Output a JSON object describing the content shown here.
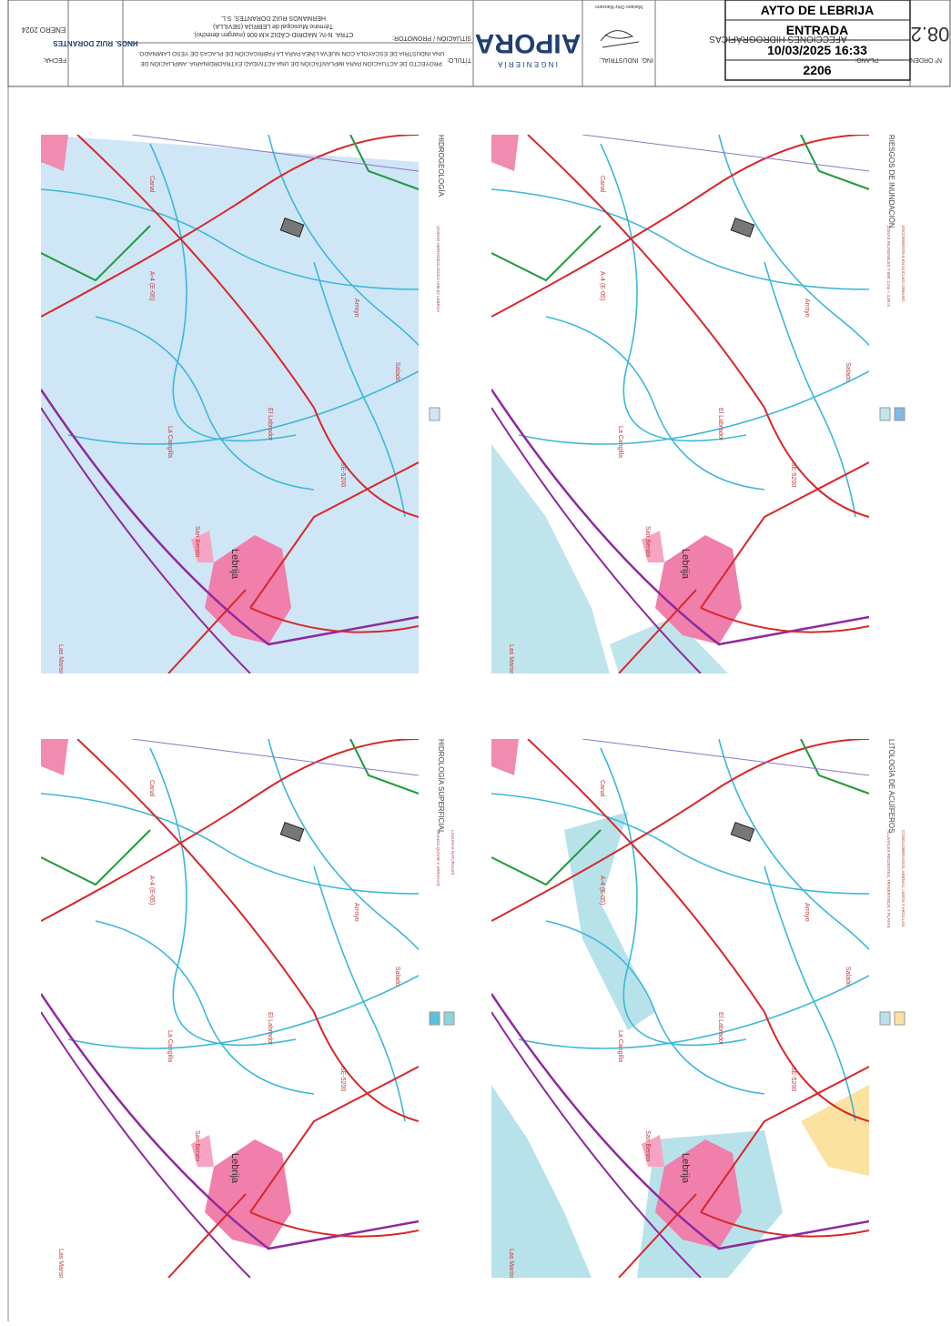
{
  "stamp": {
    "org": "AYTO DE LEBRIJA",
    "label": "ENTRADA",
    "datetime": "10/03/2025 16:33",
    "number": "2206"
  },
  "title_block": {
    "order_label": "Nº ORDEN:",
    "plan_number": "08.2",
    "plan_label": "PLANO:",
    "plan_title": "AFECCIONES HIDROGRÁFICAS",
    "engineer_label": "ING. INDUSTRIAL:",
    "engineer_name": "Mariano Ortiz Manzano",
    "company": "AIPORA",
    "company_sub": "I N G E N I E R Í A",
    "title_label": "TÍTULO:",
    "title_lines": [
      "PROYECTO DE ACTUACIÓN PARA IMPLANTACIÓN DE UNA ACTIVIDAD EXTRAORDINARIA. AMPLIACIÓN DE",
      "UNA INDUSTRIA DE ESCAYOLA CON NUEVA LÍNEA PARA LA FABRICACIÓN DE PLACAS DE YESO LAMINADO."
    ],
    "situation_label": "SITUACIÓN / PROMOTOR:",
    "situation_lines": [
      "CTRA. N-IV, MADRID-CÁDIZ KM 606 (margen derecho).",
      "Término Municipal de LEBRIJA (SEVILLA)",
      "HERMANOS RUIZ DORANTES, S.L."
    ],
    "client": "HNOS. RUIZ DORANTES",
    "date_label": "FECHA:",
    "date": "ENERO 2024"
  },
  "map_labels": [
    "Lebrija",
    "A-4 (E-05)",
    "Arroyo",
    "Canal",
    "SE-5200",
    "Las Marismas",
    "San Benito",
    "La Cangilla",
    "El Labrador",
    "Salado"
  ],
  "panels": [
    {
      "title": "HIDROGEOLOGÍA",
      "legend": [
        {
          "label": "UNIDAD HIDROGEOLÓGICA U05-52 LEBRIJA",
          "color": "#cfe6f6"
        }
      ]
    },
    {
      "title": "RIESGOS DE INUNDACIÓN",
      "legend": [
        {
          "label": "ZONAS INUNDABLES T-500: Cota < 4,00 m",
          "color": "#bfe4ec"
        },
        {
          "label": "ESCORRENTÍAS EN NÚCLEO URBANO",
          "color": "#7fb8ec"
        }
      ]
    },
    {
      "title": "HIDROLOGÍA SUPERFICIAL",
      "legend": [
        {
          "label": "GUADALQUIVIR Y ARROYOS",
          "color": "#5bc0de"
        },
        {
          "label": "LAGUNAS NATURALES",
          "color": "#8fd3df"
        }
      ]
    },
    {
      "title": "LITOLOGÍA DE ACUÍFEROS",
      "legend": [
        {
          "label": "ALUVIALES RECIENTES, TRAVERTINOS Y PLAYAS",
          "color": "#b7e2ea"
        },
        {
          "label": "CONGLOMERADOS, ARENAS, LIMOS Y ARCILLAS",
          "color": "#fbe2a0"
        }
      ]
    }
  ]
}
